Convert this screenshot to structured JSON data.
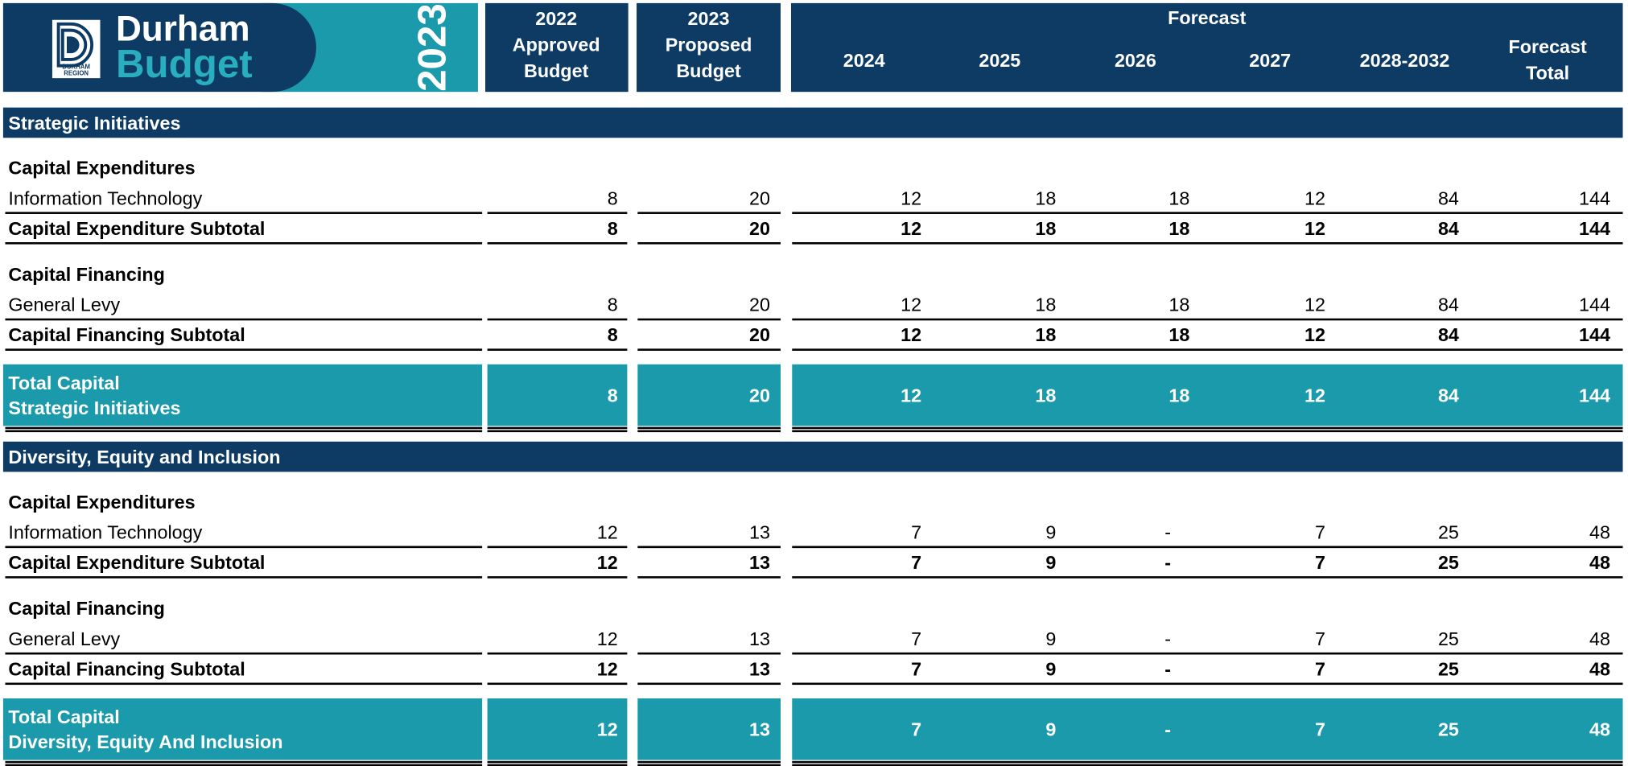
{
  "header": {
    "logo": {
      "line1": "Durham",
      "line2": "Budget",
      "region": [
        "DURHAM",
        "REGION"
      ]
    },
    "year": "2023",
    "columns": [
      [
        "2022",
        "Approved",
        "Budget"
      ],
      [
        "2023",
        "Proposed",
        "Budget"
      ],
      [
        "2024"
      ],
      [
        "2025"
      ],
      [
        "2026"
      ],
      [
        "2027"
      ],
      [
        "2028-2032"
      ],
      [
        "Forecast",
        "Total"
      ]
    ],
    "forecast_label": "Forecast"
  },
  "sections": [
    {
      "title": "Strategic Initiatives",
      "groups": [
        {
          "heading": "Capital Expenditures",
          "rows": [
            {
              "label": "Information Technology",
              "values": [
                8,
                20,
                12,
                18,
                18,
                12,
                84,
                144
              ]
            }
          ],
          "subtotal": {
            "label": "Capital Expenditure Subtotal",
            "values": [
              8,
              20,
              12,
              18,
              18,
              12,
              84,
              144
            ]
          }
        },
        {
          "heading": "Capital Financing",
          "rows": [
            {
              "label": "General Levy",
              "values": [
                8,
                20,
                12,
                18,
                18,
                12,
                84,
                144
              ]
            }
          ],
          "subtotal": {
            "label": "Capital Financing Subtotal",
            "values": [
              8,
              20,
              12,
              18,
              18,
              12,
              84,
              144
            ]
          }
        }
      ],
      "total": {
        "label": [
          "Total Capital",
          "Strategic Initiatives"
        ],
        "values": [
          8,
          20,
          12,
          18,
          18,
          12,
          84,
          144
        ]
      }
    },
    {
      "title": "Diversity, Equity and Inclusion",
      "groups": [
        {
          "heading": "Capital Expenditures",
          "rows": [
            {
              "label": "Information Technology",
              "values": [
                12,
                13,
                7,
                9,
                "-",
                7,
                25,
                48
              ]
            }
          ],
          "subtotal": {
            "label": "Capital Expenditure Subtotal",
            "values": [
              12,
              13,
              7,
              9,
              "-",
              7,
              25,
              48
            ]
          }
        },
        {
          "heading": "Capital Financing",
          "rows": [
            {
              "label": "General Levy",
              "values": [
                12,
                13,
                7,
                9,
                "-",
                7,
                25,
                48
              ]
            }
          ],
          "subtotal": {
            "label": "Capital Financing Subtotal",
            "values": [
              12,
              13,
              7,
              9,
              "-",
              7,
              25,
              48
            ]
          }
        }
      ],
      "total": {
        "label": [
          "Total Capital",
          "Diversity, Equity And Inclusion"
        ],
        "values": [
          12,
          13,
          7,
          9,
          "-",
          7,
          25,
          48
        ]
      }
    }
  ]
}
